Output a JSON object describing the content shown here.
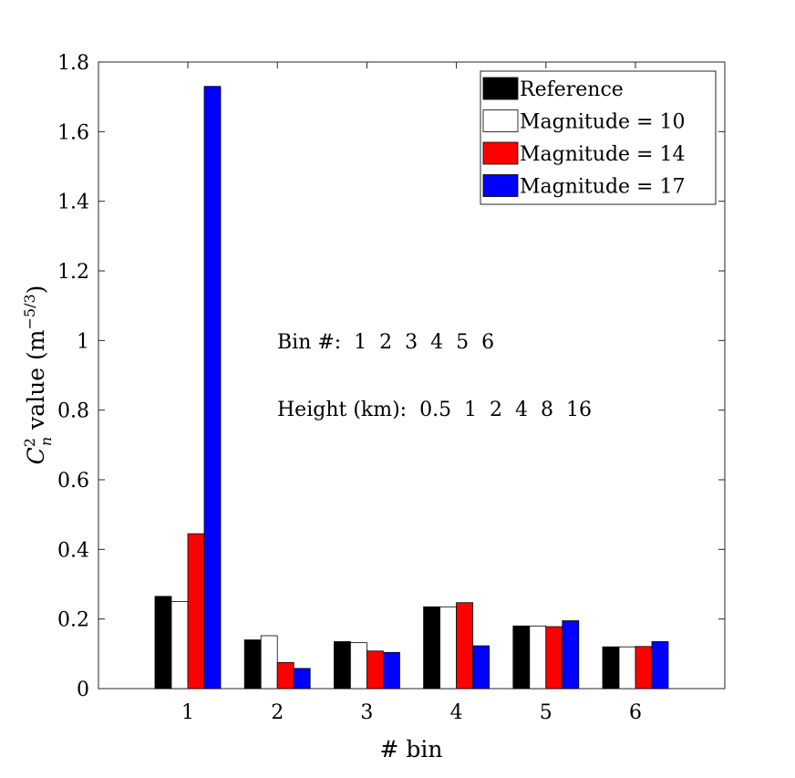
{
  "chart_data": {
    "type": "bar",
    "xlabel": "# bin",
    "ylabel": {
      "symbol": "C",
      "superscript": "2",
      "subscript": "n",
      "text": " value (m",
      "unit_superscript": "−5/3",
      "close": ")"
    },
    "categories": [
      "1",
      "2",
      "3",
      "4",
      "5",
      "6"
    ],
    "ylim": [
      0,
      1.8
    ],
    "yticks": [
      "0",
      "0.2",
      "0.4",
      "0.6",
      "0.8",
      "1",
      "1.2",
      "1.4",
      "1.6",
      "1.8"
    ],
    "ytick_values": [
      0,
      0.2,
      0.4,
      0.6,
      0.8,
      1.0,
      1.2,
      1.4,
      1.6,
      1.8
    ],
    "grid": false,
    "legend_position": "top-right",
    "series": [
      {
        "name": "Reference",
        "color": "#000000",
        "values": [
          0.265,
          0.14,
          0.135,
          0.235,
          0.18,
          0.12
        ]
      },
      {
        "name": "Magnitude = 10",
        "color": "#ffffff",
        "values": [
          0.25,
          0.152,
          0.132,
          0.235,
          0.18,
          0.12
        ]
      },
      {
        "name": "Magnitude = 14",
        "color": "#ff0000",
        "values": [
          0.445,
          0.075,
          0.108,
          0.247,
          0.178,
          0.121
        ]
      },
      {
        "name": "Magnitude = 17",
        "color": "#0000ff",
        "values": [
          1.73,
          0.058,
          0.104,
          0.123,
          0.195,
          0.135
        ]
      }
    ],
    "annotations": [
      "Bin #:  1  2  3  4  5  6",
      "Height (km):  0.5  1  2  4  8  16"
    ]
  }
}
